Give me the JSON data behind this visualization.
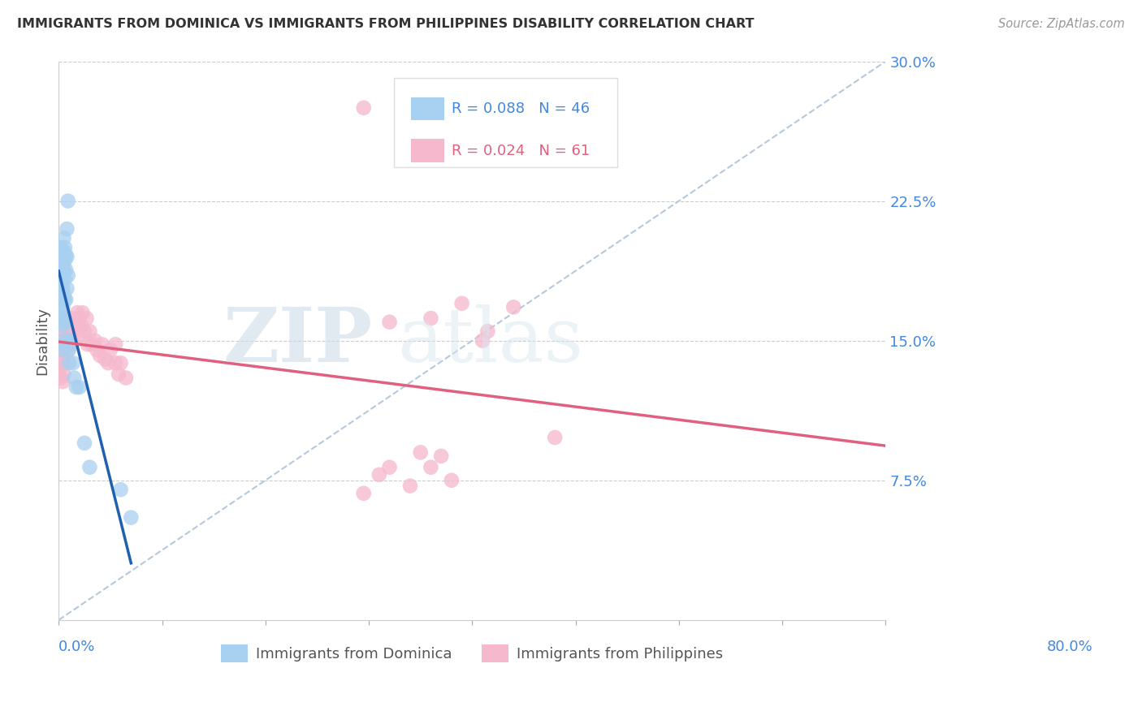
{
  "title": "IMMIGRANTS FROM DOMINICA VS IMMIGRANTS FROM PHILIPPINES DISABILITY CORRELATION CHART",
  "source": "Source: ZipAtlas.com",
  "ylabel": "Disability",
  "yticks": [
    0.0,
    0.075,
    0.15,
    0.225,
    0.3
  ],
  "ytick_labels": [
    "",
    "7.5%",
    "15.0%",
    "22.5%",
    "30.0%"
  ],
  "xlim": [
    0.0,
    0.8
  ],
  "ylim": [
    0.0,
    0.3
  ],
  "color_dominica": "#a8d0f0",
  "color_philippines": "#f5b8cc",
  "color_dominica_line": "#2060b0",
  "color_philippines_line": "#e06080",
  "color_dashed": "#b8c8dc",
  "watermark_zip": "ZIP",
  "watermark_atlas": "atlas",
  "dominica_x": [
    0.001,
    0.002,
    0.002,
    0.002,
    0.003,
    0.003,
    0.003,
    0.003,
    0.004,
    0.004,
    0.004,
    0.004,
    0.004,
    0.005,
    0.005,
    0.005,
    0.005,
    0.005,
    0.005,
    0.006,
    0.006,
    0.006,
    0.006,
    0.006,
    0.006,
    0.007,
    0.007,
    0.007,
    0.008,
    0.008,
    0.008,
    0.009,
    0.009,
    0.01,
    0.01,
    0.01,
    0.011,
    0.012,
    0.014,
    0.015,
    0.017,
    0.02,
    0.025,
    0.03,
    0.06,
    0.07
  ],
  "dominica_y": [
    0.19,
    0.195,
    0.185,
    0.2,
    0.195,
    0.18,
    0.175,
    0.165,
    0.192,
    0.178,
    0.168,
    0.158,
    0.145,
    0.205,
    0.198,
    0.188,
    0.175,
    0.162,
    0.15,
    0.2,
    0.193,
    0.183,
    0.172,
    0.16,
    0.148,
    0.196,
    0.188,
    0.172,
    0.21,
    0.195,
    0.178,
    0.225,
    0.185,
    0.15,
    0.145,
    0.138,
    0.15,
    0.148,
    0.138,
    0.13,
    0.125,
    0.125,
    0.095,
    0.082,
    0.07,
    0.055
  ],
  "philippines_x": [
    0.001,
    0.002,
    0.003,
    0.004,
    0.004,
    0.005,
    0.005,
    0.006,
    0.006,
    0.007,
    0.007,
    0.008,
    0.008,
    0.009,
    0.009,
    0.01,
    0.011,
    0.012,
    0.013,
    0.014,
    0.015,
    0.016,
    0.017,
    0.018,
    0.019,
    0.02,
    0.022,
    0.023,
    0.025,
    0.027,
    0.028,
    0.03,
    0.032,
    0.035,
    0.037,
    0.04,
    0.042,
    0.045,
    0.048,
    0.05,
    0.055,
    0.055,
    0.058,
    0.06,
    0.065,
    0.32,
    0.36,
    0.39,
    0.415,
    0.44,
    0.32,
    0.35,
    0.37,
    0.48,
    0.31,
    0.34,
    0.36,
    0.295,
    0.38,
    0.41,
    0.295
  ],
  "philippines_y": [
    0.135,
    0.13,
    0.138,
    0.128,
    0.142,
    0.132,
    0.138,
    0.145,
    0.152,
    0.148,
    0.155,
    0.162,
    0.15,
    0.158,
    0.145,
    0.152,
    0.148,
    0.155,
    0.162,
    0.15,
    0.155,
    0.16,
    0.158,
    0.165,
    0.152,
    0.162,
    0.158,
    0.165,
    0.155,
    0.162,
    0.148,
    0.155,
    0.148,
    0.15,
    0.145,
    0.142,
    0.148,
    0.14,
    0.138,
    0.145,
    0.148,
    0.138,
    0.132,
    0.138,
    0.13,
    0.16,
    0.162,
    0.17,
    0.155,
    0.168,
    0.082,
    0.09,
    0.088,
    0.098,
    0.078,
    0.072,
    0.082,
    0.068,
    0.075,
    0.15,
    0.275
  ]
}
